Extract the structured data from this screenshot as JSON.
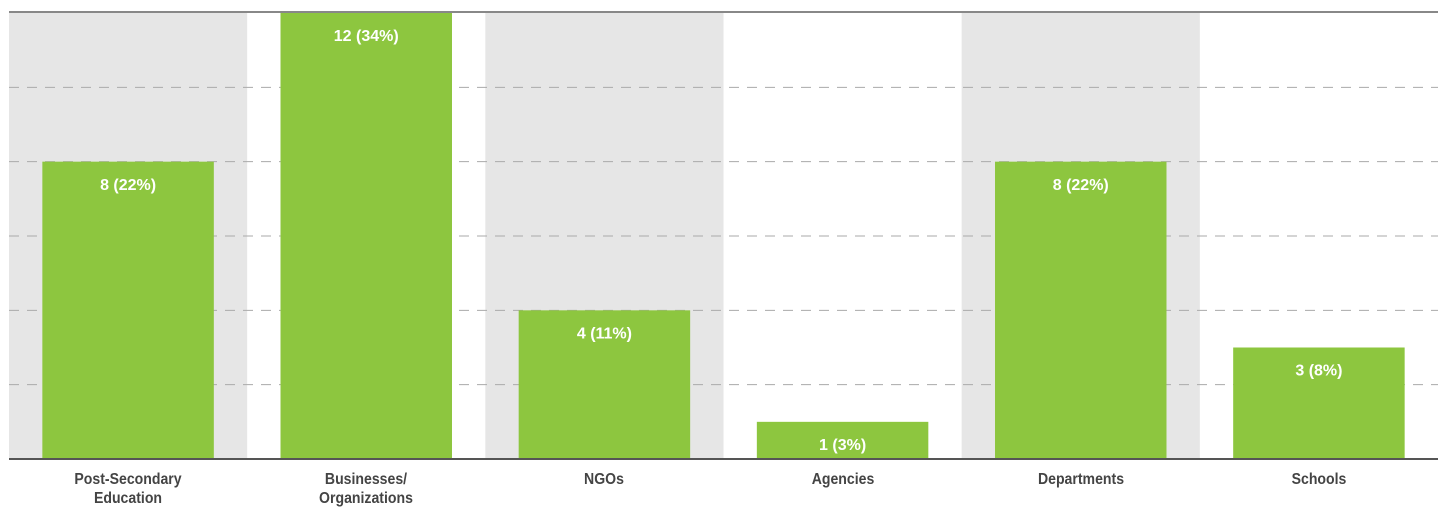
{
  "chart_data": {
    "type": "bar",
    "categories": [
      "Post-Secondary\nEducation",
      "Businesses/\nOrganizations",
      "NGOs",
      "Agencies",
      "Departments",
      "Schools"
    ],
    "values": [
      8,
      12,
      4,
      1,
      8,
      3
    ],
    "value_labels": [
      "8 (22%)",
      "12 (34%)",
      "4 (11%)",
      "1 (3%)",
      "8 (22%)",
      "3 (8%)"
    ],
    "color": "#8dc63f",
    "ylim": [
      0,
      12
    ],
    "yticks": [
      2,
      4,
      6,
      8,
      10
    ],
    "grid": true
  }
}
